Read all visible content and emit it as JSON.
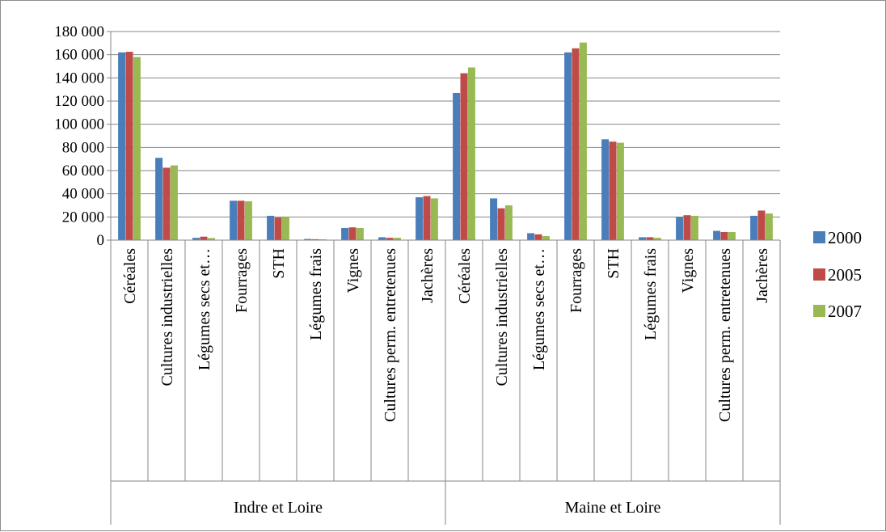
{
  "colors": {
    "2000": "#4a7ebb",
    "2005": "#be4b48",
    "2007": "#98b954",
    "grid": "#868686",
    "axis": "#868686"
  },
  "chart_data": {
    "type": "bar",
    "title": "",
    "xlabel": "",
    "ylabel": "",
    "ylim": [
      0,
      180000
    ],
    "yticks": [
      0,
      20000,
      40000,
      60000,
      80000,
      100000,
      120000,
      140000,
      160000,
      180000
    ],
    "ytick_labels": [
      "0",
      "20 000",
      "40 000",
      "60 000",
      "80 000",
      "100 000",
      "120 000",
      "140 000",
      "160 000",
      "180 000"
    ],
    "grid": true,
    "legend_position": "right",
    "groups": [
      {
        "name": "Indre et Loire",
        "categories": [
          "Céréales",
          "Cultures industrielles",
          "Légumes secs et…",
          "Fourrages",
          "STH",
          "Légumes frais",
          "Vignes",
          "Cultures perm. entretenues",
          "Jachères"
        ]
      },
      {
        "name": "Maine et Loire",
        "categories": [
          "Céréales",
          "Cultures industrielles",
          "Légumes secs et…",
          "Fourrages",
          "STH",
          "Légumes frais",
          "Vignes",
          "Cultures perm. entretenues",
          "Jachères"
        ]
      }
    ],
    "series": [
      {
        "name": "2000",
        "values": [
          162000,
          71000,
          2000,
          34000,
          21000,
          1000,
          10500,
          2500,
          37000,
          127000,
          36000,
          6000,
          162000,
          87000,
          2500,
          20000,
          8000,
          21000
        ]
      },
      {
        "name": "2005",
        "values": [
          162500,
          62500,
          3000,
          34000,
          19500,
          800,
          11000,
          2000,
          38000,
          144000,
          27500,
          5000,
          165500,
          85000,
          2500,
          21500,
          7000,
          25500
        ]
      },
      {
        "name": "2007",
        "values": [
          158000,
          64500,
          1800,
          33500,
          20000,
          700,
          10500,
          2000,
          36000,
          149000,
          30000,
          3500,
          170500,
          84000,
          2000,
          21000,
          7000,
          23000
        ]
      }
    ]
  }
}
